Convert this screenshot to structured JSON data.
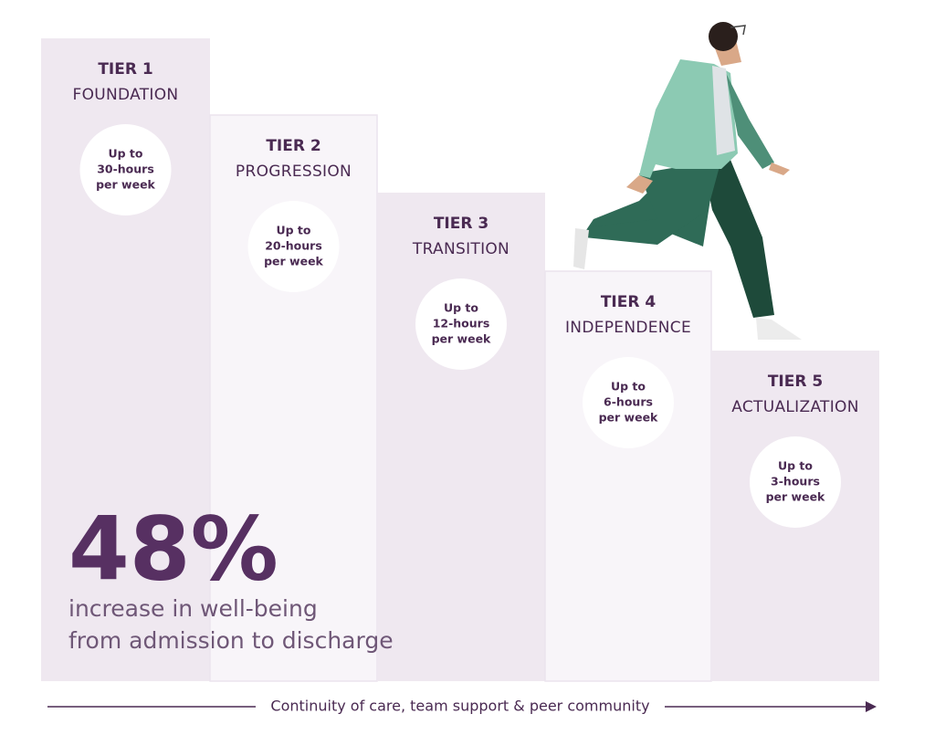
{
  "tiers": [
    {
      "label": "TIER 1",
      "name": "FOUNDATION",
      "hours": [
        "Up to",
        "30-hours",
        "per week"
      ]
    },
    {
      "label": "TIER 2",
      "name": "PROGRESSION",
      "hours": [
        "Up to",
        "20-hours",
        "per week"
      ]
    },
    {
      "label": "TIER 3",
      "name": "TRANSITION",
      "hours": [
        "Up to",
        "12-hours",
        "per week"
      ]
    },
    {
      "label": "TIER 4",
      "name": "INDEPENDENCE",
      "hours": [
        "Up to",
        "6-hours",
        "per week"
      ]
    },
    {
      "label": "TIER 5",
      "name": "ACTUALIZATION",
      "hours": [
        "Up to",
        "3-hours",
        "per week"
      ]
    }
  ],
  "stat": {
    "value": "48%",
    "description": [
      "increase in well-being",
      "from admission to discharge"
    ]
  },
  "footer": "Continuity of care, team support & peer community"
}
